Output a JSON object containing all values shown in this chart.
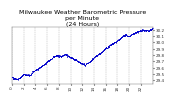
{
  "title": "Milwaukee Weather Barometric Pressure\nper Minute\n(24 Hours)",
  "title_fontsize": 4.5,
  "dot_color": "#0000cc",
  "dot_size": 0.8,
  "bg_color": "#ffffff",
  "grid_color": "#aaaaaa",
  "ylim": [
    29.35,
    30.25
  ],
  "yticks": [
    29.4,
    29.5,
    29.6,
    29.7,
    29.8,
    29.9,
    30.0,
    30.1,
    30.2
  ],
  "xlabel_fontsize": 3.0,
  "ylabel_fontsize": 3.5,
  "tick_fontsize": 3.0,
  "num_points": 1440,
  "seed": 42,
  "waypoints_x": [
    0,
    60,
    120,
    180,
    220,
    300,
    380,
    450,
    500,
    540,
    580,
    620,
    660,
    700,
    750,
    800,
    850,
    900,
    950,
    1000,
    1050,
    1100,
    1150,
    1200,
    1250,
    1300,
    1350,
    1400,
    1439
  ],
  "waypoints_y": [
    29.45,
    29.42,
    29.5,
    29.48,
    29.55,
    29.62,
    29.72,
    29.8,
    29.78,
    29.82,
    29.78,
    29.75,
    29.72,
    29.68,
    29.65,
    29.7,
    29.78,
    29.82,
    29.9,
    29.95,
    30.0,
    30.05,
    30.12,
    30.1,
    30.15,
    30.18,
    30.2,
    30.18,
    30.22
  ]
}
